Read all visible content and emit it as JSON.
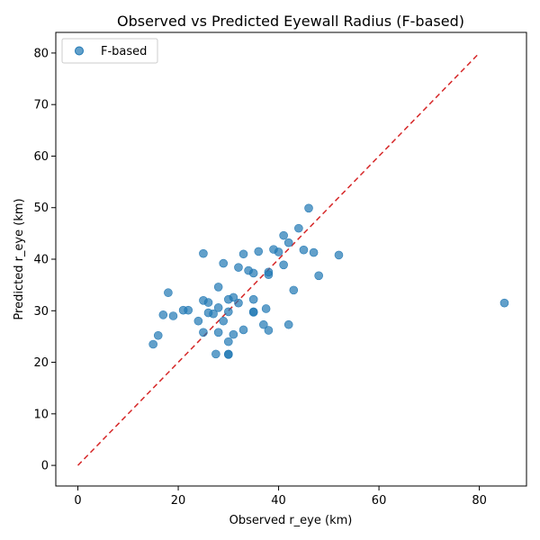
{
  "chart_data": {
    "type": "scatter",
    "title": "Observed vs Predicted Eyewall Radius (F-based)",
    "xlabel": "Observed r_eye (km)",
    "ylabel": "Predicted r_eye (km)",
    "xlim": [
      -4.4,
      89.4
    ],
    "ylim": [
      -4.0,
      84.0
    ],
    "xticks": [
      0,
      20,
      40,
      60,
      80
    ],
    "yticks": [
      0,
      10,
      20,
      30,
      40,
      50,
      60,
      70,
      80
    ],
    "grid": false,
    "legend": {
      "position": "upper-left",
      "entries": [
        "F-based"
      ]
    },
    "reference_line": {
      "style": "dashed",
      "color": "#d62728",
      "from": [
        0,
        0
      ],
      "to": [
        80,
        80
      ]
    },
    "series": [
      {
        "name": "F-based",
        "color": "#1f77b4",
        "points": [
          [
            15,
            23.5
          ],
          [
            16,
            25.2
          ],
          [
            17,
            29.2
          ],
          [
            18,
            33.5
          ],
          [
            19,
            29.0
          ],
          [
            21,
            30.1
          ],
          [
            22,
            30.1
          ],
          [
            24,
            28.0
          ],
          [
            25,
            41.1
          ],
          [
            25,
            32.0
          ],
          [
            25,
            25.8
          ],
          [
            26,
            29.6
          ],
          [
            26,
            31.6
          ],
          [
            27,
            29.4
          ],
          [
            27.5,
            21.6
          ],
          [
            28,
            34.6
          ],
          [
            28,
            30.6
          ],
          [
            28,
            25.8
          ],
          [
            29,
            39.2
          ],
          [
            29,
            28.0
          ],
          [
            30,
            21.6
          ],
          [
            30,
            21.5
          ],
          [
            30,
            24.0
          ],
          [
            30,
            29.8
          ],
          [
            30,
            32.2
          ],
          [
            31,
            32.6
          ],
          [
            31,
            25.4
          ],
          [
            32,
            38.4
          ],
          [
            32,
            31.5
          ],
          [
            33,
            41.0
          ],
          [
            33,
            26.3
          ],
          [
            34,
            37.8
          ],
          [
            35,
            37.3
          ],
          [
            35,
            32.2
          ],
          [
            35,
            29.8
          ],
          [
            35,
            29.7
          ],
          [
            36,
            41.5
          ],
          [
            37,
            27.3
          ],
          [
            37.5,
            30.4
          ],
          [
            38,
            37.5
          ],
          [
            38,
            37.0
          ],
          [
            38,
            26.2
          ],
          [
            39,
            41.9
          ],
          [
            40,
            41.4
          ],
          [
            41,
            44.6
          ],
          [
            41,
            38.9
          ],
          [
            42,
            43.2
          ],
          [
            42,
            27.3
          ],
          [
            43,
            34.0
          ],
          [
            44,
            46.0
          ],
          [
            45,
            41.8
          ],
          [
            46,
            49.9
          ],
          [
            47,
            41.3
          ],
          [
            48,
            36.8
          ],
          [
            52,
            40.8
          ],
          [
            85,
            31.5
          ]
        ]
      }
    ]
  }
}
